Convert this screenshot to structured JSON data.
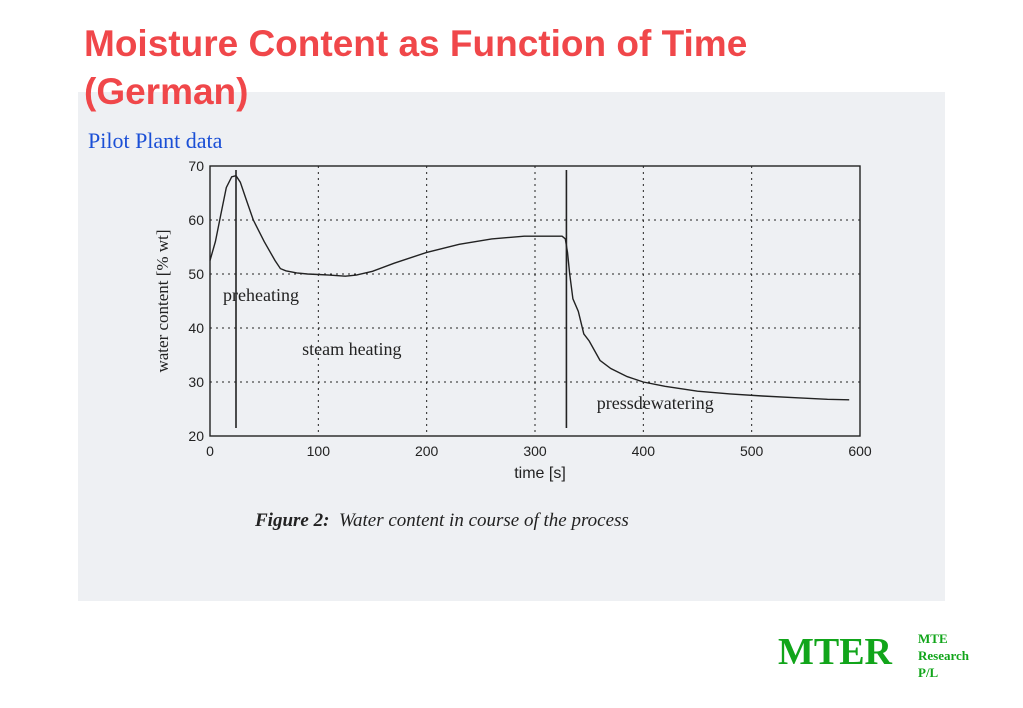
{
  "slide": {
    "title_line1": "Moisture Content as Function of Time",
    "title_line2": "(German)",
    "subtitle": "Pilot Plant data",
    "figure_label": "Figure 2:",
    "figure_caption": "Water content in course of the process",
    "logo_main": "MTER",
    "logo_line1": "MTE",
    "logo_line2": "Research",
    "logo_line3": "P/L"
  },
  "colors": {
    "title": "#f0474a",
    "subtitle": "#1a4fd6",
    "logo": "#11a51a",
    "curve": "#222222",
    "grid": "#222222",
    "scan_background": "#eef0f3"
  },
  "chart_data": {
    "type": "line",
    "title": "",
    "xlabel": "time [s]",
    "ylabel": "water content [% wt]",
    "xlim": [
      0,
      600
    ],
    "ylim": [
      20,
      70
    ],
    "xticks": [
      0,
      100,
      200,
      300,
      400,
      500,
      600
    ],
    "yticks": [
      20,
      30,
      40,
      50,
      60,
      70
    ],
    "grid": true,
    "series": [
      {
        "x": [
          0,
          5,
          10,
          15,
          20,
          24,
          28,
          33,
          40,
          50,
          60,
          65,
          70,
          80,
          90,
          100,
          110,
          125,
          135,
          150,
          170,
          200,
          230,
          260,
          290,
          300,
          310,
          320,
          325,
          328,
          330,
          332,
          335,
          340,
          345,
          350,
          360,
          370,
          385,
          400,
          420,
          450,
          480,
          510,
          540,
          570,
          590
        ],
        "y": [
          52.5,
          56,
          61,
          66,
          68,
          68.2,
          67,
          64,
          60,
          56,
          52.5,
          51,
          50.6,
          50.2,
          50,
          49.9,
          49.8,
          49.6,
          49.8,
          50.5,
          52,
          54,
          55.5,
          56.5,
          57,
          57,
          57,
          57,
          57,
          56.5,
          54,
          50,
          46,
          42.5,
          39.5,
          37,
          34,
          32.5,
          31,
          30,
          29.2,
          28.3,
          27.8,
          27.4,
          27.1,
          26.8,
          26.7
        ]
      }
    ],
    "markers": [
      24,
      329
    ],
    "annotations": [
      {
        "text": "preheating",
        "x": 12,
        "y": 45
      },
      {
        "text": "steam heating",
        "x": 85,
        "y": 35
      },
      {
        "text": "pressdewatering",
        "x": 357,
        "y": 25
      }
    ]
  }
}
